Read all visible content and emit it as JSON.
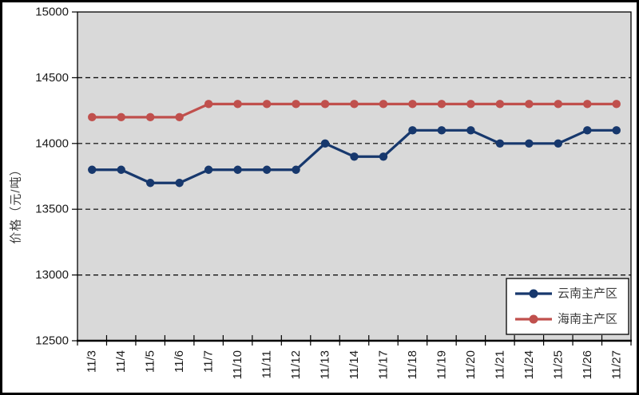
{
  "window": {
    "background": "#ffffff",
    "border_color": "#000000",
    "plot_border_color": "#000000"
  },
  "chart_data": {
    "type": "line",
    "title": "",
    "xlabel": "",
    "ylabel": "价格（元/吨）",
    "categories": [
      "11/3",
      "11/4",
      "11/5",
      "11/6",
      "11/7",
      "11/10",
      "11/11",
      "11/12",
      "11/13",
      "11/14",
      "11/17",
      "11/18",
      "11/19",
      "11/20",
      "11/21",
      "11/24",
      "11/25",
      "11/26",
      "11/27"
    ],
    "series": [
      {
        "name": "云南主产区",
        "color": "#17386D",
        "marker": "circle",
        "values": [
          13800,
          13800,
          13700,
          13700,
          13800,
          13800,
          13800,
          13800,
          14000,
          13900,
          13900,
          14100,
          14100,
          14100,
          14000,
          14000,
          14000,
          14100,
          14100
        ]
      },
      {
        "name": "海南主产区",
        "color": "#C0504D",
        "marker": "circle",
        "values": [
          14200,
          14200,
          14200,
          14200,
          14300,
          14300,
          14300,
          14300,
          14300,
          14300,
          14300,
          14300,
          14300,
          14300,
          14300,
          14300,
          14300,
          14300,
          14300
        ]
      }
    ],
    "ylim": [
      12500,
      15000
    ],
    "yticks": [
      12500,
      13000,
      13500,
      14000,
      14500,
      15000
    ],
    "grid": true,
    "gridline_style": "dashed",
    "gridline_color": "#000000",
    "plot_bg": "#D9D9D9",
    "legend_position": "bottom-right",
    "legend_bg": "#ffffff",
    "legend_border": "#000000"
  }
}
